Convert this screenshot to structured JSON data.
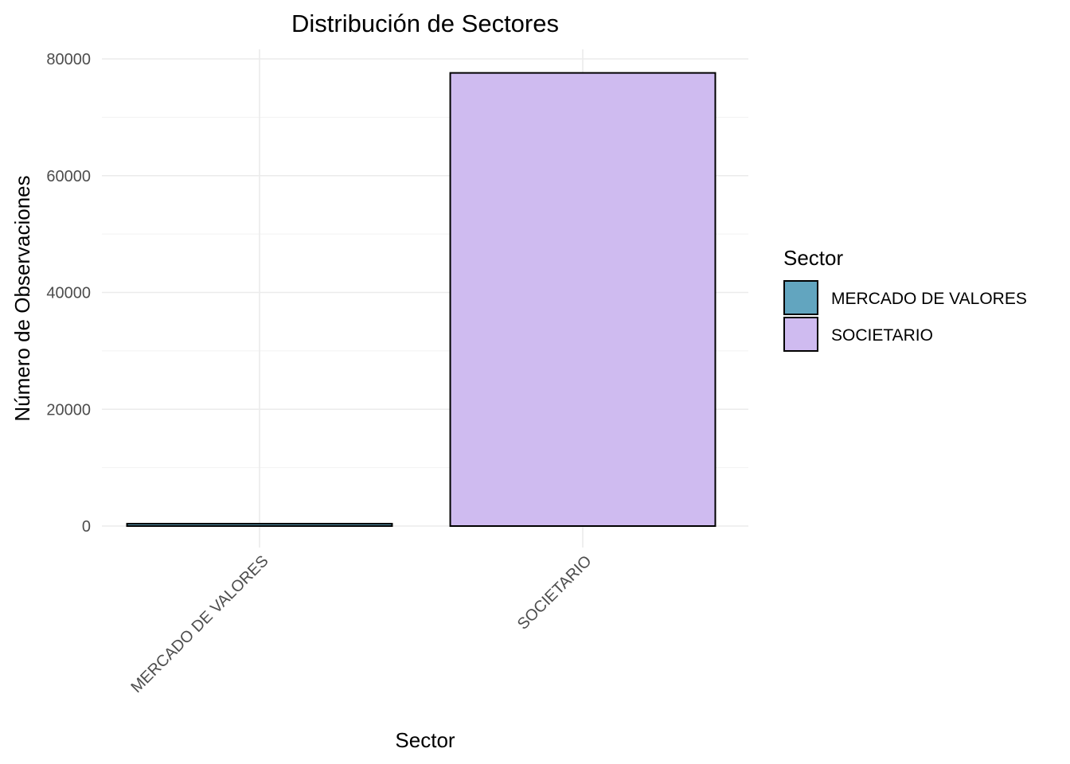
{
  "chart_data": {
    "type": "bar",
    "title": "Distribución de Sectores",
    "xlabel": "Sector",
    "ylabel": "Número de Observaciones",
    "categories": [
      "MERCADO DE VALORES",
      "SOCIETARIO"
    ],
    "values": [
      400,
      77600
    ],
    "colors": [
      "#62a5bf",
      "#cfbbf0"
    ],
    "bar_border_color": "#000000",
    "ylim": [
      0,
      80000
    ],
    "yticks": [
      0,
      20000,
      40000,
      60000,
      80000
    ],
    "ytick_labels": [
      "0",
      "20000",
      "40000",
      "60000",
      "80000"
    ],
    "grid": true,
    "legend": {
      "title": "Sector",
      "placement": "right",
      "items": [
        "MERCADO DE VALORES",
        "SOCIETARIO"
      ]
    }
  }
}
